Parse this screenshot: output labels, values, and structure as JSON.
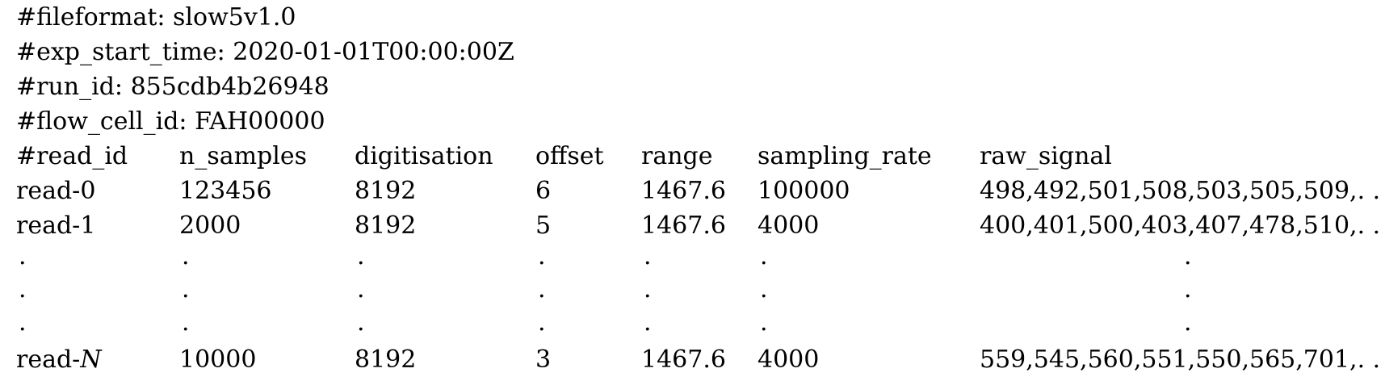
{
  "header": [
    "#fileformat: slow5v1.0",
    "#exp_start_time: 2020-01-01T00:00:00Z",
    "#run_id: 855cdb4b26948",
    "#flow_cell_id: FAH00000"
  ],
  "table": {
    "columns": [
      "#read_id",
      "n_samples",
      "digitisation",
      "offset",
      "range",
      "sampling_rate",
      "raw_signal"
    ],
    "rows": [
      [
        "read-0",
        "123456",
        "8192",
        "6",
        "1467.6",
        "100000",
        "498,492,501,508,503,505,509,. . ."
      ],
      [
        "read-1",
        "2000",
        "8192",
        "5",
        "1467.6",
        "4000",
        "400,401,500,403,407,478,510,. . ."
      ]
    ],
    "ellipsis_mark": ".",
    "last_row": {
      "read_id_prefix": "read-",
      "read_id_var": "N",
      "cells": [
        "10000",
        "8192",
        "3",
        "1467.6",
        "4000",
        "559,545,560,551,550,565,701,. . ."
      ]
    }
  }
}
